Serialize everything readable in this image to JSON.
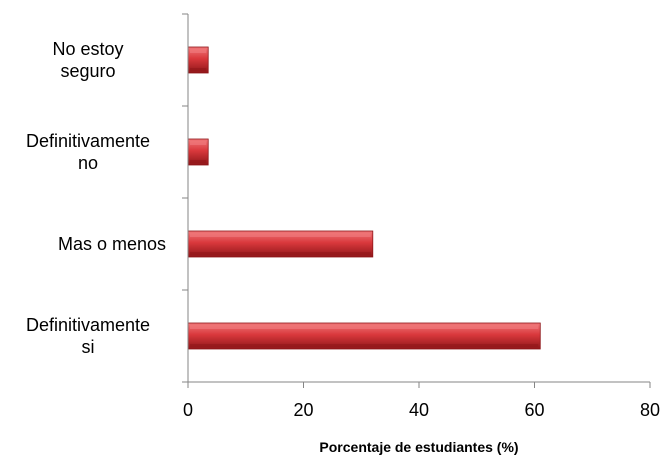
{
  "chart_data": {
    "type": "bar",
    "orientation": "horizontal",
    "categories": [
      "No estoy\nseguro",
      "Definitivamente\nno",
      "Mas o menos",
      "Definitivamente\nsi"
    ],
    "values": [
      3.5,
      3.5,
      32,
      61
    ],
    "title": "",
    "xlabel": "Porcentaje de estudiantes (%)",
    "ylabel": "",
    "xlim": [
      0,
      80
    ],
    "xticks": [
      0,
      20,
      40,
      60,
      80
    ],
    "grid": false,
    "legend": "none",
    "bar_color": "#d9383c",
    "bar_highlight_color": "#f0787a",
    "bar_shadow_color": "#8f1619"
  }
}
